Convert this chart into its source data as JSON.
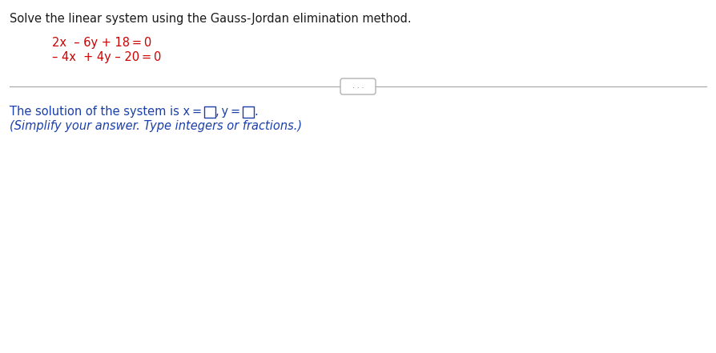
{
  "title_text": "Solve the linear system using the Gauss-Jordan elimination method.",
  "eq1_parts": [
    "2x",
    "  – 6y + 18 = 0"
  ],
  "eq2_parts": [
    "– 4x",
    "  + 4y – 20 = 0"
  ],
  "eq_color": "#cc0000",
  "title_color": "#1a1a1a",
  "solution_color": "#1a3faa",
  "hint_color": "#1a3faa",
  "bg_color": "#ffffff",
  "title_fontsize": 10.5,
  "eq_fontsize": 10.5,
  "solution_fontsize": 10.5,
  "hint_fontsize": 10.5,
  "divider_color": "#aaaaaa",
  "dots_color": "#666666",
  "box_color": "#1a3faa"
}
